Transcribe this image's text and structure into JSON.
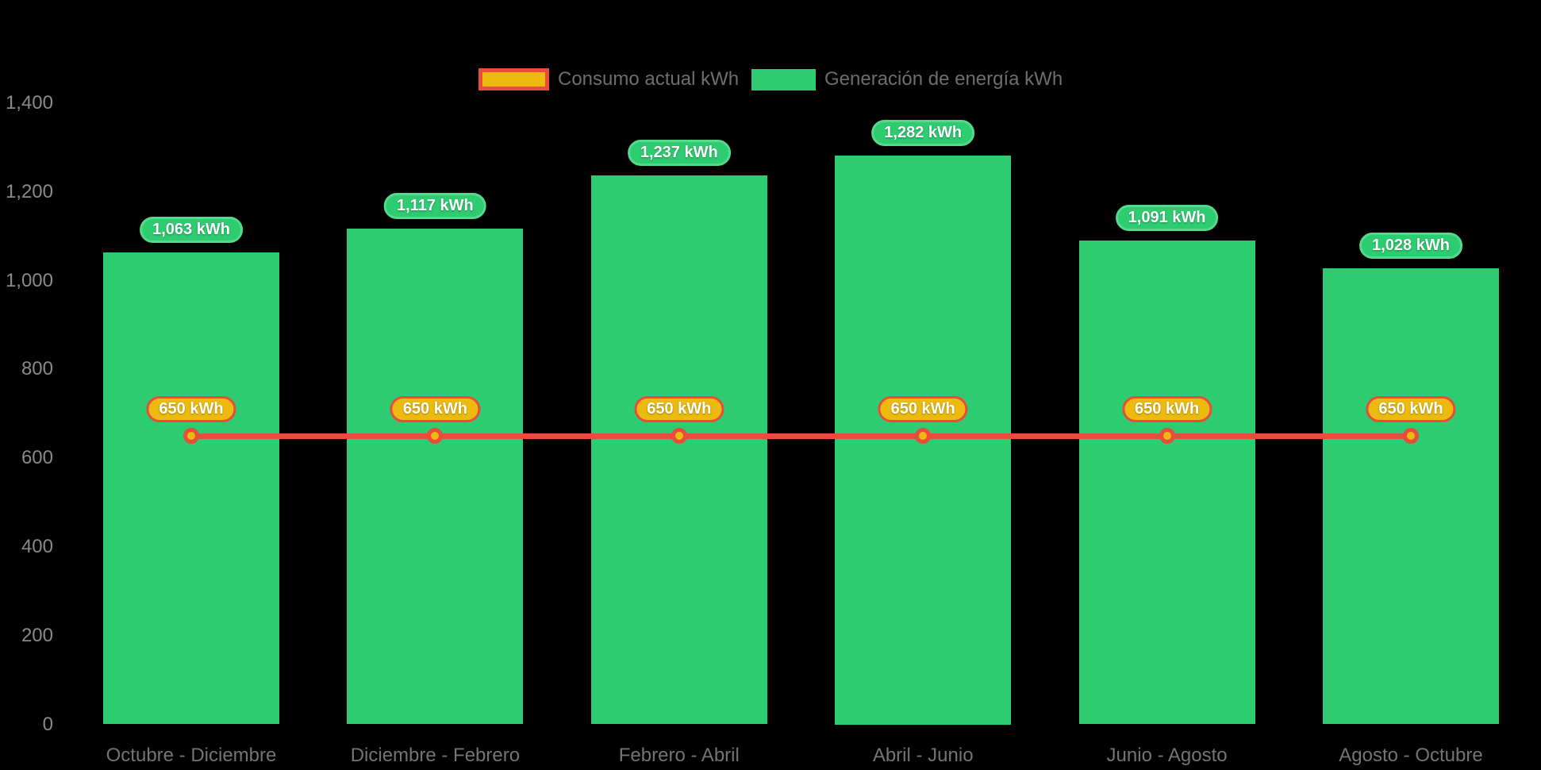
{
  "background_color": "#000000",
  "legend": {
    "position": "top-center",
    "items": [
      {
        "label": "Consumo actual kWh",
        "swatch_fill": "#EDBB0F",
        "swatch_border": "#E74C3C"
      },
      {
        "label": "Generación de energía kWh",
        "swatch_fill": "#2ECC71",
        "swatch_border": ""
      }
    ]
  },
  "chart_data": {
    "type": "bar",
    "title": "",
    "categories": [
      "Octubre - Diciembre",
      "Diciembre - Febrero",
      "Febrero - Abril",
      "Abril - Junio",
      "Junio - Agosto",
      "Agosto - Octubre"
    ],
    "series": [
      {
        "name": "Generación de energía kWh",
        "type": "bar",
        "color": "#2ECC71",
        "values": [
          1063,
          1117,
          1237,
          1282,
          1091,
          1028
        ],
        "data_labels": [
          "1,063 kWh",
          "1,117 kWh",
          "1,237 kWh",
          "1,282 kWh",
          "1,091 kWh",
          "1,028 kWh"
        ],
        "data_label_style": {
          "fill": "#2ECC71",
          "border": "#55D98A",
          "text_color": "#FFFFFF"
        }
      },
      {
        "name": "Consumo actual kWh",
        "type": "line",
        "color": "#E74C3C",
        "marker_fill": "#EDBB0F",
        "marker_border": "#E74C3C",
        "values": [
          650,
          650,
          650,
          650,
          650,
          650
        ],
        "data_labels": [
          "650 kWh",
          "650 kWh",
          "650 kWh",
          "650 kWh",
          "650 kWh",
          "650 kWh"
        ],
        "data_label_style": {
          "fill": "#EDBB0F",
          "border": "#E74C3C",
          "text_color": "#FFFFFF"
        }
      }
    ],
    "xlabel": "",
    "ylabel": "",
    "ylim": [
      0,
      1400
    ],
    "yticks": [
      0,
      200,
      400,
      600,
      800,
      1000,
      1200,
      1400
    ],
    "ytick_labels": [
      "0",
      "200",
      "400",
      "600",
      "800",
      "1,000",
      "1,200",
      "1,400"
    ],
    "grid": false,
    "legend_position": "top-center"
  }
}
